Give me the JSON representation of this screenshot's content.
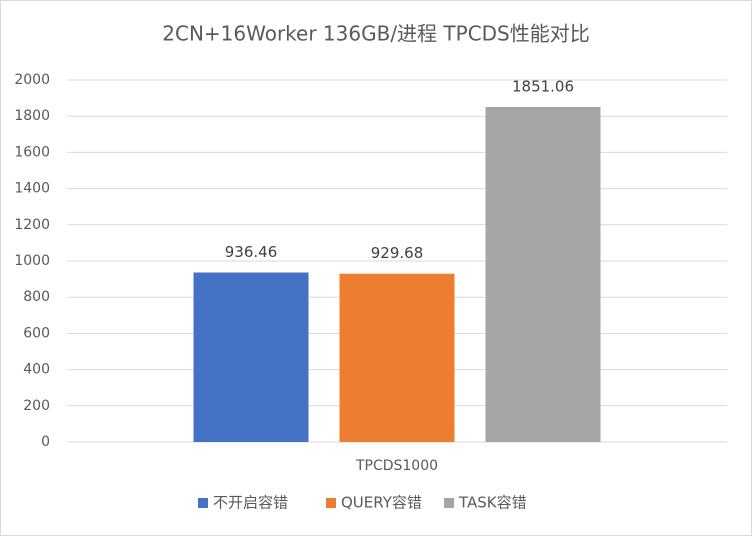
{
  "chart_data": {
    "type": "bar",
    "title": "2CN+16Worker 136GB/进程 TPCDS性能对比",
    "categories": [
      "TPCDS1000"
    ],
    "series": [
      {
        "name": "不开启容错",
        "color": "#4472c4",
        "values": [
          936.46
        ]
      },
      {
        "name": "QUERY容错",
        "color": "#ed7d31",
        "values": [
          929.68
        ]
      },
      {
        "name": "TASK容错",
        "color": "#a5a5a5",
        "values": [
          1851.06
        ]
      }
    ],
    "ylim": [
      0,
      2000
    ],
    "yticks": [
      0,
      200,
      400,
      600,
      800,
      1000,
      1200,
      1400,
      1600,
      1800,
      2000
    ],
    "grid": true,
    "legend": "bottom"
  }
}
